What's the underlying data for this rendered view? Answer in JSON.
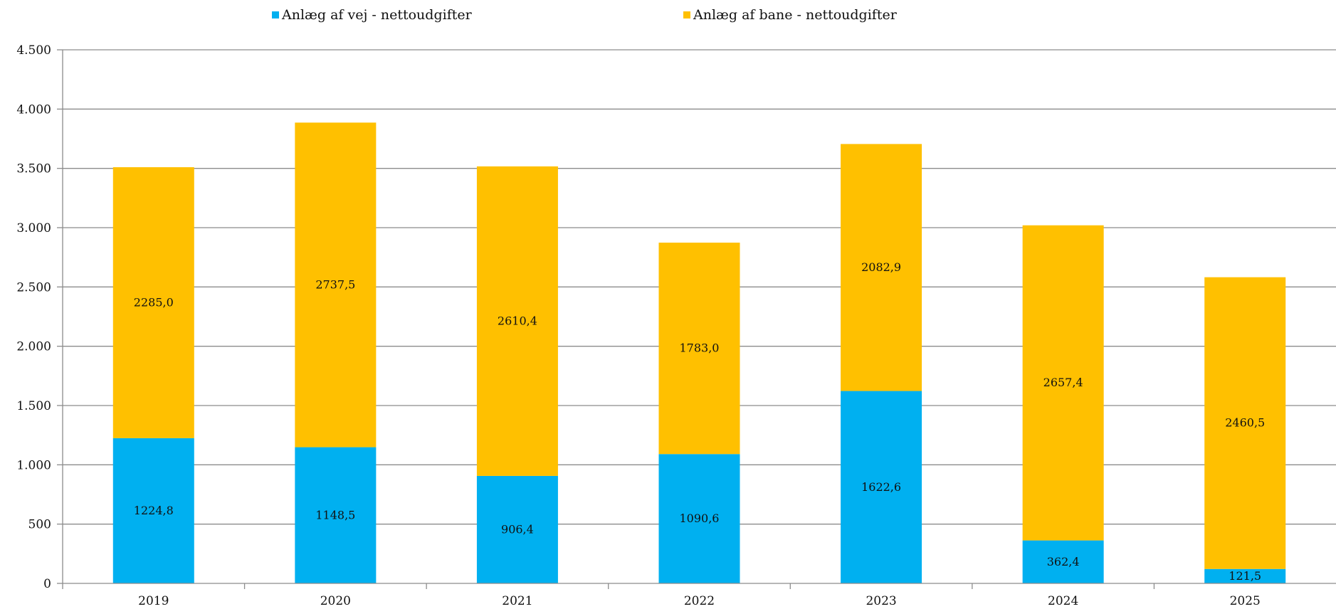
{
  "chart_data": {
    "type": "bar",
    "stacked": true,
    "categories": [
      "2019",
      "2020",
      "2021",
      "2022",
      "2023",
      "2024",
      "2025"
    ],
    "series": [
      {
        "name": "Anlæg af vej - nettoudgifter",
        "color": "#00B0F0",
        "values": [
          1224.8,
          1148.5,
          906.4,
          1090.6,
          1622.6,
          362.4,
          121.5
        ],
        "labels": [
          "1224,8",
          "1148,5",
          "906,4",
          "1090,6",
          "1622,6",
          "362,4",
          "121,5"
        ]
      },
      {
        "name": "Anlæg af bane - nettoudgifter",
        "color": "#FFC000",
        "values": [
          2285.0,
          2737.5,
          2610.4,
          1783.0,
          2082.9,
          2657.4,
          2460.5
        ],
        "labels": [
          "2285,0",
          "2737,5",
          "2610,4",
          "1783,0",
          "2082,9",
          "2657,4",
          "2460,5"
        ]
      }
    ],
    "yticks": [
      0,
      500,
      1000,
      1500,
      2000,
      2500,
      3000,
      3500,
      4000,
      4500
    ],
    "ytick_labels": [
      "0",
      "500",
      "1.000",
      "1.500",
      "2.000",
      "2.500",
      "3.000",
      "3.500",
      "4.000",
      "4.500"
    ],
    "ylim": [
      0,
      4500
    ],
    "title": "",
    "xlabel": "",
    "ylabel": "",
    "grid": true,
    "legend_position": "top"
  }
}
